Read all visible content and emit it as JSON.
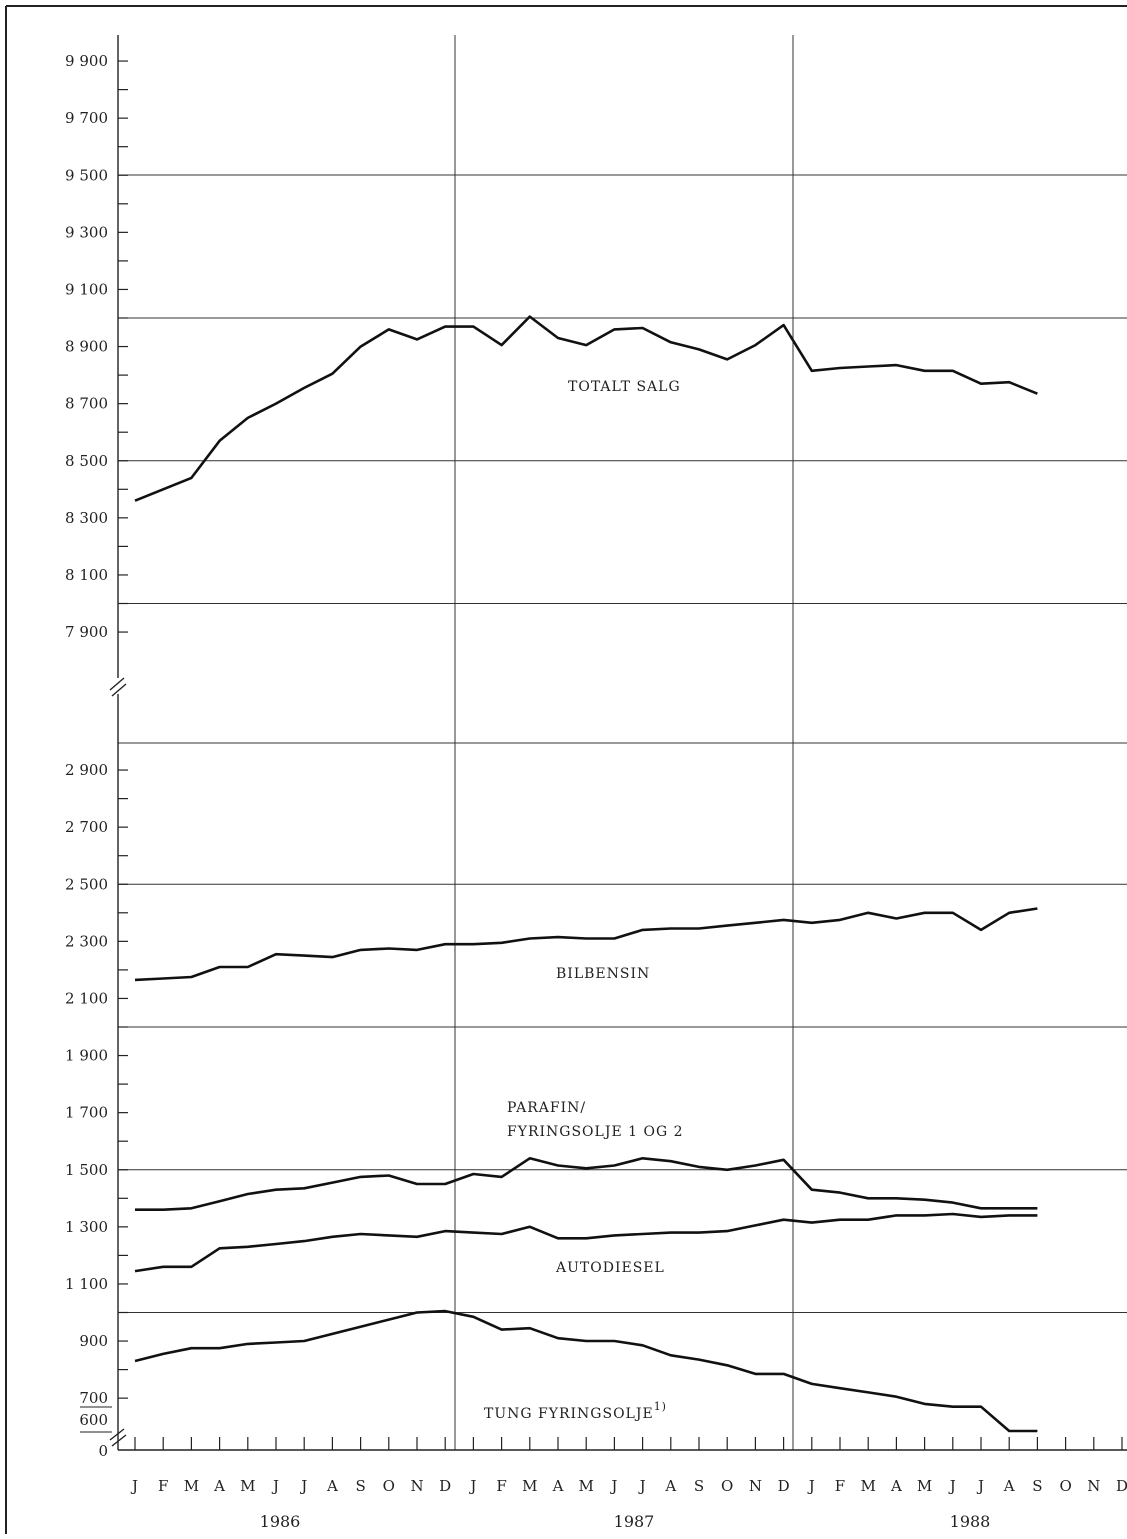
{
  "chart_data": {
    "type": "line",
    "y_axis_breaks": true,
    "y_ticks_upper": [
      "9 900",
      "9 700",
      "9 500",
      "9 300",
      "9 100",
      "8 900",
      "8 700",
      "8 500",
      "8 300",
      "8 100",
      "7 900"
    ],
    "y_ticks_lower": [
      "2 900",
      "2 700",
      "2 500",
      "2 300",
      "2 100",
      "1 900",
      "1 700",
      "1 500",
      "1 300",
      "1 100",
      "900",
      "700",
      "600",
      "0"
    ],
    "month_labels": [
      "J",
      "F",
      "M",
      "A",
      "M",
      "J",
      "J",
      "A",
      "S",
      "O",
      "N",
      "D",
      "J",
      "F",
      "M",
      "A",
      "M",
      "J",
      "J",
      "A",
      "S",
      "O",
      "N",
      "D",
      "J",
      "F",
      "M",
      "A",
      "M",
      "J",
      "J",
      "A",
      "S",
      "O",
      "N",
      "D"
    ],
    "years": [
      "1986",
      "1987",
      "1988"
    ],
    "series": [
      {
        "name": "TOTALT SALG",
        "values": [
          8360,
          8400,
          8440,
          8570,
          8650,
          8700,
          8755,
          8805,
          8900,
          8960,
          8925,
          8970,
          8970,
          8905,
          9005,
          8930,
          8905,
          8960,
          8965,
          8915,
          8890,
          8855,
          8905,
          8975,
          8815,
          8825,
          8830,
          8835,
          8815,
          8815,
          8770,
          8775,
          8735
        ]
      },
      {
        "name": "BILBENSIN",
        "values": [
          2165,
          2170,
          2175,
          2210,
          2210,
          2255,
          2250,
          2245,
          2270,
          2275,
          2270,
          2290,
          2290,
          2295,
          2310,
          2315,
          2310,
          2310,
          2340,
          2345,
          2345,
          2355,
          2365,
          2375,
          2365,
          2375,
          2400,
          2380,
          2400,
          2400,
          2340,
          2400,
          2415
        ]
      },
      {
        "name": "PARAFIN/",
        "name_line2": "FYRINGSOLJE 1 OG 2",
        "values": [
          1360,
          1360,
          1365,
          1390,
          1415,
          1430,
          1435,
          1455,
          1475,
          1480,
          1450,
          1450,
          1485,
          1475,
          1540,
          1515,
          1505,
          1515,
          1540,
          1530,
          1510,
          1500,
          1515,
          1535,
          1430,
          1420,
          1400,
          1400,
          1395,
          1385,
          1365,
          1365,
          1365
        ]
      },
      {
        "name": "AUTODIESEL",
        "values": [
          1145,
          1160,
          1160,
          1225,
          1230,
          1240,
          1250,
          1265,
          1275,
          1270,
          1265,
          1285,
          1280,
          1275,
          1300,
          1260,
          1260,
          1270,
          1275,
          1280,
          1280,
          1285,
          1305,
          1325,
          1315,
          1325,
          1325,
          1340,
          1340,
          1345,
          1335,
          1340,
          1340
        ]
      },
      {
        "name": "TUNG FYRINGSOLJE",
        "footnote": "1)",
        "values": [
          830,
          855,
          875,
          875,
          890,
          895,
          900,
          925,
          950,
          975,
          1000,
          1005,
          985,
          940,
          945,
          910,
          900,
          900,
          885,
          850,
          835,
          815,
          785,
          785,
          750,
          735,
          720,
          705,
          680,
          670,
          670,
          645,
          640
        ]
      }
    ]
  }
}
